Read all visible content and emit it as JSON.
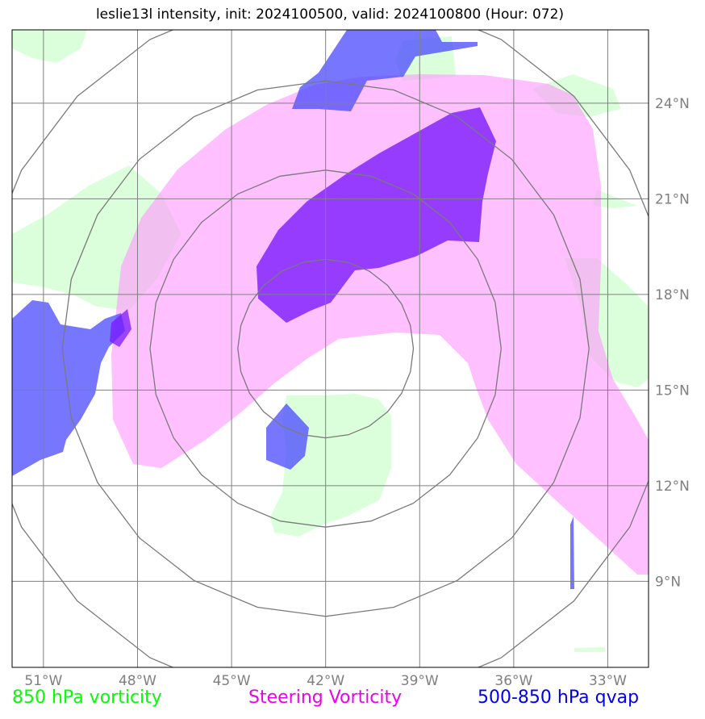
{
  "title": "leslie13l intensity, init: 2024100500, valid: 2024100800 (Hour: 072)",
  "map": {
    "lon_range": [
      -52,
      -31.7
    ],
    "lat_range": [
      6.3,
      26.3
    ],
    "lon_ticks": [
      {
        "value": -51,
        "label": "51°W"
      },
      {
        "value": -48,
        "label": "48°W"
      },
      {
        "value": -45,
        "label": "45°W"
      },
      {
        "value": -42,
        "label": "42°W"
      },
      {
        "value": -39,
        "label": "39°W"
      },
      {
        "value": -36,
        "label": "36°W"
      },
      {
        "value": -33,
        "label": "33°W"
      }
    ],
    "lat_ticks": [
      {
        "value": 24,
        "label": "24°N"
      },
      {
        "value": 21,
        "label": "21°N"
      },
      {
        "value": 18,
        "label": "18°N"
      },
      {
        "value": 15,
        "label": "15°N"
      },
      {
        "value": 12,
        "label": "12°N"
      },
      {
        "value": 9,
        "label": "9°N"
      }
    ],
    "range_rings_center": {
      "lon": -42,
      "lat": 16.3
    },
    "range_rings_radius_deg": [
      2.8,
      5.6,
      8.4,
      11.2
    ],
    "grid": true
  },
  "legend": [
    {
      "label": "850 hPa vorticity",
      "color": "#00ff00"
    },
    {
      "label": "Steering Vorticity",
      "color": "#ee00ee"
    },
    {
      "label": "500-850 hPa qvap",
      "color": "#0000ee"
    }
  ],
  "fill_colors": {
    "vort850": "#ccffcc",
    "steering": "#ff99ff",
    "qvap": "#5050ff",
    "qvap_strong": "#7a1aff"
  }
}
